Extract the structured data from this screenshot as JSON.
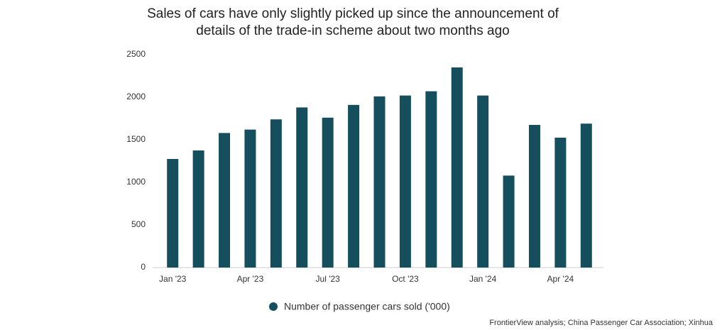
{
  "chart_data": {
    "type": "bar",
    "title": "Sales of cars have only slightly picked up since the announcement of details of the trade-in scheme about two months ago",
    "categories": [
      "Jan '23",
      null,
      null,
      "Apr '23",
      null,
      null,
      "Jul '23",
      null,
      null,
      "Oct '23",
      null,
      null,
      "Jan '24",
      null,
      null,
      "Apr '24",
      null
    ],
    "series": [
      {
        "name": "Number of passenger cars sold ('000)",
        "color": "#154f5e",
        "values": [
          1275,
          1375,
          1580,
          1620,
          1740,
          1880,
          1760,
          1910,
          2010,
          2020,
          2070,
          2350,
          2020,
          1080,
          1675,
          1525,
          1690
        ]
      }
    ],
    "ylim": [
      0,
      2500
    ],
    "yticks": [
      0,
      500,
      1000,
      1500,
      2000,
      2500
    ],
    "grid": false,
    "legend": "bottom",
    "source": "FrontierView analysis; China Passenger Car Association; Xinhua"
  }
}
